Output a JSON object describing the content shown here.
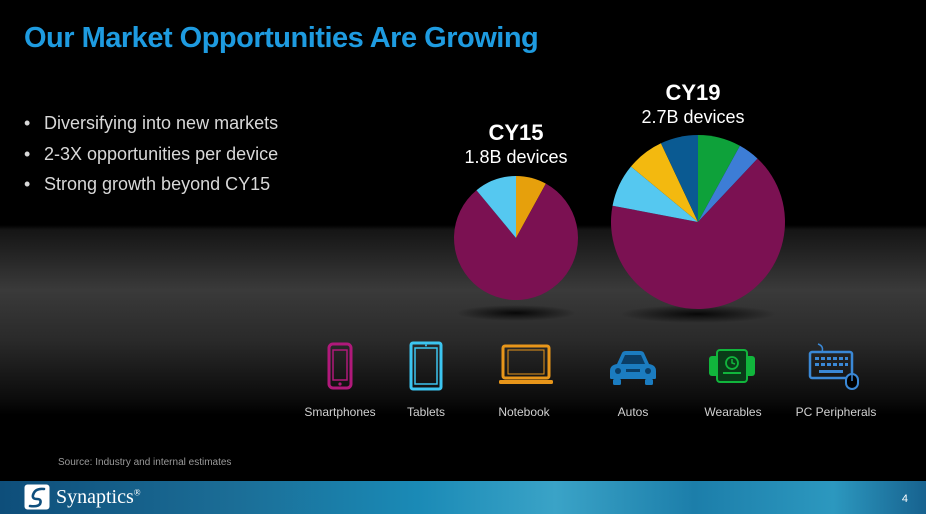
{
  "title": "Our Market Opportunities Are Growing",
  "bullets": [
    "Diversifying into new markets",
    "2-3X opportunities per device",
    "Strong growth beyond CY15"
  ],
  "bullet_glyph": "•",
  "chart_data": [
    {
      "type": "pie",
      "title": "CY15",
      "subtitle": "1.8B devices",
      "slices": [
        {
          "category": "Notebook",
          "value": 8,
          "color": "#e6a00c"
        },
        {
          "category": "Smartphones",
          "value": 81,
          "color": "#7b1152"
        },
        {
          "category": "Tablets",
          "value": 11,
          "color": "#55c8f0"
        }
      ]
    },
    {
      "type": "pie",
      "title": "CY19",
      "subtitle": "2.7B devices",
      "slices": [
        {
          "category": "Wearables",
          "value": 8,
          "color": "#0ea13a"
        },
        {
          "category": "PC Peripherals",
          "value": 4,
          "color": "#3d7dd6"
        },
        {
          "category": "Smartphones",
          "value": 66,
          "color": "#7b1152"
        },
        {
          "category": "Tablets",
          "value": 8,
          "color": "#55c8f0"
        },
        {
          "category": "Notebook",
          "value": 7,
          "color": "#f3b90f"
        },
        {
          "category": "Autos",
          "value": 7,
          "color": "#0a5a92"
        }
      ]
    }
  ],
  "categories": [
    {
      "label": "Smartphones",
      "icon": "smartphone-icon",
      "color": "#b0197a"
    },
    {
      "label": "Tablets",
      "icon": "tablet-icon",
      "color": "#3cc5f0"
    },
    {
      "label": "Notebook",
      "icon": "notebook-icon",
      "color": "#e8961a"
    },
    {
      "label": "Autos",
      "icon": "car-icon",
      "color": "#1b7cc0"
    },
    {
      "label": "Wearables",
      "icon": "smartwatch-icon",
      "color": "#11b53c"
    },
    {
      "label": "PC Peripherals",
      "icon": "keyboard-mouse-icon",
      "color": "#3a88d6"
    }
  ],
  "source": "Source: Industry and internal estimates",
  "footer": {
    "logo_text": "Synaptics",
    "logo_mark": "®",
    "page_number": "4"
  },
  "colors": {
    "title": "#1e9be0",
    "footer_band": "#1a8ab6"
  }
}
